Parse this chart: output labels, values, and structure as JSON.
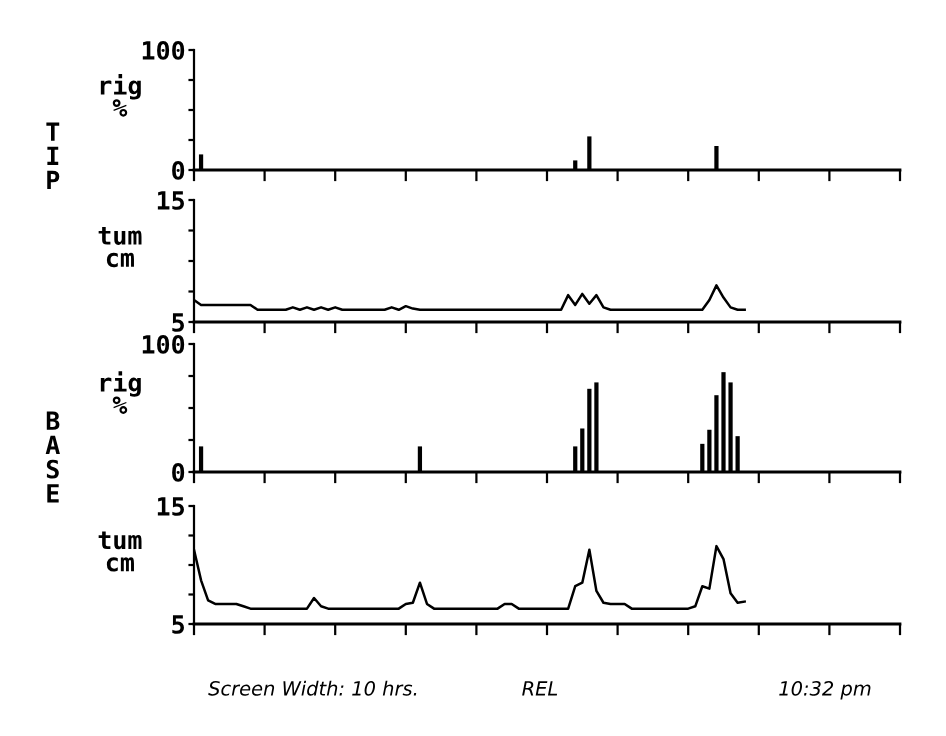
{
  "chart_data": [
    {
      "type": "bar",
      "ylabel": "rig\n%",
      "color": "#000000",
      "ylim": [
        0,
        100
      ],
      "yticks": [
        0,
        {
          "value": 25,
          "label": null
        },
        {
          "value": 50,
          "label": null
        },
        {
          "value": 75,
          "label": null
        },
        100
      ],
      "tick_labels": "y",
      "annotations": [
        "TIP"
      ],
      "categories": [
        null,
        null,
        null,
        null,
        null,
        null,
        null,
        null,
        null,
        null,
        null,
        null,
        null,
        null,
        null,
        null,
        null,
        null,
        null,
        null,
        null,
        null,
        null,
        null,
        null,
        null,
        null,
        null,
        null,
        null,
        null,
        null,
        null,
        null,
        null,
        null,
        null,
        null,
        null,
        null,
        null,
        null,
        null,
        null,
        null,
        null,
        null,
        null,
        null,
        null,
        null,
        null,
        null,
        null,
        null,
        null,
        null,
        null,
        null,
        null,
        null,
        null,
        null,
        null,
        null,
        null,
        null,
        null,
        null,
        null,
        null,
        null,
        null,
        null,
        null,
        null,
        null,
        null,
        null,
        null,
        null,
        null,
        null,
        null,
        null,
        null,
        null,
        null,
        null,
        null,
        null,
        null,
        null,
        null,
        null,
        null,
        null,
        null,
        null,
        null,
        null
      ],
      "values": [
        0,
        13,
        0,
        0,
        0,
        0,
        0,
        0,
        0,
        0,
        0,
        0,
        0,
        0,
        0,
        0,
        0,
        0,
        0,
        0,
        0,
        0,
        0,
        0,
        0,
        0,
        0,
        0,
        0,
        0,
        0,
        0,
        0,
        0,
        0,
        0,
        0,
        0,
        0,
        0,
        0,
        0,
        0,
        0,
        0,
        0,
        0,
        0,
        0,
        0,
        0,
        0,
        0,
        0,
        8,
        0,
        28,
        0,
        0,
        0,
        0,
        0,
        0,
        0,
        0,
        0,
        0,
        0,
        0,
        0,
        0,
        0,
        0,
        0,
        20,
        0,
        0,
        0,
        0,
        null,
        null,
        null,
        null,
        null,
        null,
        null,
        null,
        null,
        null,
        null,
        null,
        null,
        null,
        null,
        null,
        null,
        null,
        null,
        null,
        null,
        null
      ]
    },
    {
      "type": "line",
      "ylabel": "tum\ncm",
      "color": "#000000",
      "ylim": [
        5,
        15
      ],
      "yticks": [
        5,
        {
          "value": 7.5,
          "label": null
        },
        {
          "value": 10,
          "label": null
        },
        {
          "value": 12.5,
          "label": null
        },
        15
      ],
      "tick_labels": "y",
      "categories": [
        null,
        null,
        null,
        null,
        null,
        null,
        null,
        null,
        null,
        null,
        null,
        null,
        null,
        null,
        null,
        null,
        null,
        null,
        null,
        null,
        null,
        null,
        null,
        null,
        null,
        null,
        null,
        null,
        null,
        null,
        null,
        null,
        null,
        null,
        null,
        null,
        null,
        null,
        null,
        null,
        null,
        null,
        null,
        null,
        null,
        null,
        null,
        null,
        null,
        null,
        null,
        null,
        null,
        null,
        null,
        null,
        null,
        null,
        null,
        null,
        null,
        null,
        null,
        null,
        null,
        null,
        null,
        null,
        null,
        null,
        null,
        null,
        null,
        null,
        null,
        null,
        null,
        null,
        null,
        null,
        null,
        null,
        null,
        null,
        null,
        null,
        null,
        null,
        null,
        null,
        null,
        null,
        null,
        null,
        null,
        null,
        null,
        null,
        null,
        null,
        null
      ],
      "values": [
        6.8,
        6.4,
        6.4,
        6.4,
        6.4,
        6.4,
        6.4,
        6.4,
        6.4,
        6.0,
        6.0,
        6.0,
        6.0,
        6.0,
        6.2,
        6.0,
        6.2,
        6.0,
        6.2,
        6.0,
        6.2,
        6.0,
        6.0,
        6.0,
        6.0,
        6.0,
        6.0,
        6.0,
        6.2,
        6.0,
        6.3,
        6.1,
        6.0,
        6.0,
        6.0,
        6.0,
        6.0,
        6.0,
        6.0,
        6.0,
        6.0,
        6.0,
        6.0,
        6.0,
        6.0,
        6.0,
        6.0,
        6.0,
        6.0,
        6.0,
        6.0,
        6.0,
        6.0,
        7.2,
        6.4,
        7.3,
        6.5,
        7.2,
        6.2,
        6.0,
        6.0,
        6.0,
        6.0,
        6.0,
        6.0,
        6.0,
        6.0,
        6.0,
        6.0,
        6.0,
        6.0,
        6.0,
        6.0,
        6.8,
        8.0,
        7.0,
        6.2,
        6.0,
        6.0,
        null,
        null,
        null,
        null,
        null,
        null,
        null,
        null,
        null,
        null,
        null,
        null,
        null,
        null,
        null,
        null,
        null,
        null,
        null,
        null,
        null,
        null
      ]
    },
    {
      "type": "bar",
      "ylabel": "rig\n%",
      "color": "#000000",
      "ylim": [
        0,
        100
      ],
      "yticks": [
        0,
        {
          "value": 25,
          "label": null
        },
        {
          "value": 50,
          "label": null
        },
        {
          "value": 75,
          "label": null
        },
        100
      ],
      "tick_labels": "y",
      "annotations": [
        "BASE"
      ],
      "categories": [
        null,
        null,
        null,
        null,
        null,
        null,
        null,
        null,
        null,
        null,
        null,
        null,
        null,
        null,
        null,
        null,
        null,
        null,
        null,
        null,
        null,
        null,
        null,
        null,
        null,
        null,
        null,
        null,
        null,
        null,
        null,
        null,
        null,
        null,
        null,
        null,
        null,
        null,
        null,
        null,
        null,
        null,
        null,
        null,
        null,
        null,
        null,
        null,
        null,
        null,
        null,
        null,
        null,
        null,
        null,
        null,
        null,
        null,
        null,
        null,
        null,
        null,
        null,
        null,
        null,
        null,
        null,
        null,
        null,
        null,
        null,
        null,
        null,
        null,
        null,
        null,
        null,
        null,
        null,
        null,
        null,
        null,
        null,
        null,
        null,
        null,
        null,
        null,
        null,
        null,
        null,
        null,
        null,
        null,
        null,
        null,
        null,
        null,
        null,
        null,
        null
      ],
      "values": [
        0,
        20,
        0,
        0,
        0,
        0,
        0,
        0,
        0,
        0,
        0,
        0,
        0,
        0,
        0,
        0,
        0,
        0,
        0,
        0,
        0,
        0,
        0,
        0,
        0,
        0,
        0,
        0,
        0,
        0,
        0,
        0,
        20,
        0,
        0,
        0,
        0,
        0,
        0,
        0,
        0,
        0,
        0,
        0,
        0,
        0,
        0,
        0,
        0,
        0,
        0,
        0,
        0,
        0,
        20,
        34,
        65,
        70,
        0,
        0,
        0,
        0,
        0,
        0,
        0,
        0,
        0,
        0,
        0,
        0,
        0,
        0,
        22,
        33,
        60,
        78,
        70,
        28,
        0,
        null,
        null,
        null,
        null,
        null,
        null,
        null,
        null,
        null,
        null,
        null,
        null,
        null,
        null,
        null,
        null,
        null,
        null,
        null,
        null,
        null,
        null
      ]
    },
    {
      "type": "line",
      "ylabel": "tum\ncm",
      "color": "#000000",
      "ylim": [
        5,
        15
      ],
      "yticks": [
        5,
        {
          "value": 7.5,
          "label": null
        },
        {
          "value": 10,
          "label": null
        },
        {
          "value": 12.5,
          "label": null
        },
        15
      ],
      "tick_labels": "y",
      "annotations": [
        "Screen Width: 10 hrs.",
        "REL",
        "10:32 pm"
      ],
      "categories": [
        null,
        null,
        null,
        null,
        null,
        null,
        null,
        null,
        null,
        null,
        null,
        null,
        null,
        null,
        null,
        null,
        null,
        null,
        null,
        null,
        null,
        null,
        null,
        null,
        null,
        null,
        null,
        null,
        null,
        null,
        null,
        null,
        null,
        null,
        null,
        null,
        null,
        null,
        null,
        null,
        null,
        null,
        null,
        null,
        null,
        null,
        null,
        null,
        null,
        null,
        null,
        null,
        null,
        null,
        null,
        null,
        null,
        null,
        null,
        null,
        null,
        null,
        null,
        null,
        null,
        null,
        null,
        null,
        null,
        null,
        null,
        null,
        null,
        null,
        null,
        null,
        null,
        null,
        null,
        null,
        null,
        null,
        null,
        null,
        null,
        null,
        null,
        null,
        null,
        null,
        null,
        null,
        null,
        null,
        null,
        null,
        null,
        null,
        null,
        null,
        null
      ],
      "values": [
        11.3,
        8.7,
        7.0,
        6.7,
        6.7,
        6.7,
        6.7,
        6.5,
        6.3,
        6.3,
        6.3,
        6.3,
        6.3,
        6.3,
        6.3,
        6.3,
        6.3,
        7.2,
        6.5,
        6.3,
        6.3,
        6.3,
        6.3,
        6.3,
        6.3,
        6.3,
        6.3,
        6.3,
        6.3,
        6.3,
        6.7,
        6.8,
        8.5,
        6.7,
        6.3,
        6.3,
        6.3,
        6.3,
        6.3,
        6.3,
        6.3,
        6.3,
        6.3,
        6.3,
        6.7,
        6.7,
        6.3,
        6.3,
        6.3,
        6.3,
        6.3,
        6.3,
        6.3,
        6.3,
        8.2,
        8.5,
        11.3,
        7.8,
        6.8,
        6.7,
        6.7,
        6.7,
        6.3,
        6.3,
        6.3,
        6.3,
        6.3,
        6.3,
        6.3,
        6.3,
        6.3,
        6.5,
        8.2,
        8.0,
        11.6,
        10.5,
        7.6,
        6.8,
        6.9,
        null,
        null,
        null,
        null,
        null,
        null,
        null,
        null,
        null,
        null,
        null,
        null,
        null,
        null,
        null,
        null,
        null,
        null,
        null,
        null,
        null,
        null
      ]
    }
  ]
}
